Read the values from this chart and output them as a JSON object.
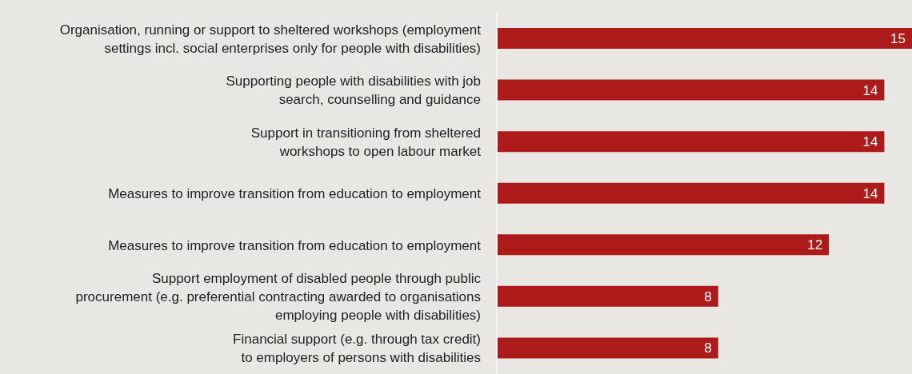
{
  "chart_data": {
    "type": "bar",
    "orientation": "horizontal",
    "color": "#ad1a1a",
    "data_labels": true,
    "grid": false,
    "legend": false,
    "tick_labels": "y",
    "categories": [
      "Organisation, running or support to sheltered workshops (employment\nsettings incl. social enterprises only for people with disabilities)",
      "Supporting people with disabilities with job\nsearch, counselling and guidance",
      "Support in transitioning from sheltered\nworkshops to open labour market",
      "Measures to improve transition from education to employment",
      "Measures to improve transition from education to employment",
      "Support employment of disabled people through public\nprocurement (e.g. preferential contracting awarded to organisations\nemploying people with disabilities)",
      "Financial support (e.g. through tax credit)\nto employers of persons with disabilities"
    ],
    "values": [
      15,
      14,
      14,
      14,
      12,
      8,
      8
    ]
  }
}
